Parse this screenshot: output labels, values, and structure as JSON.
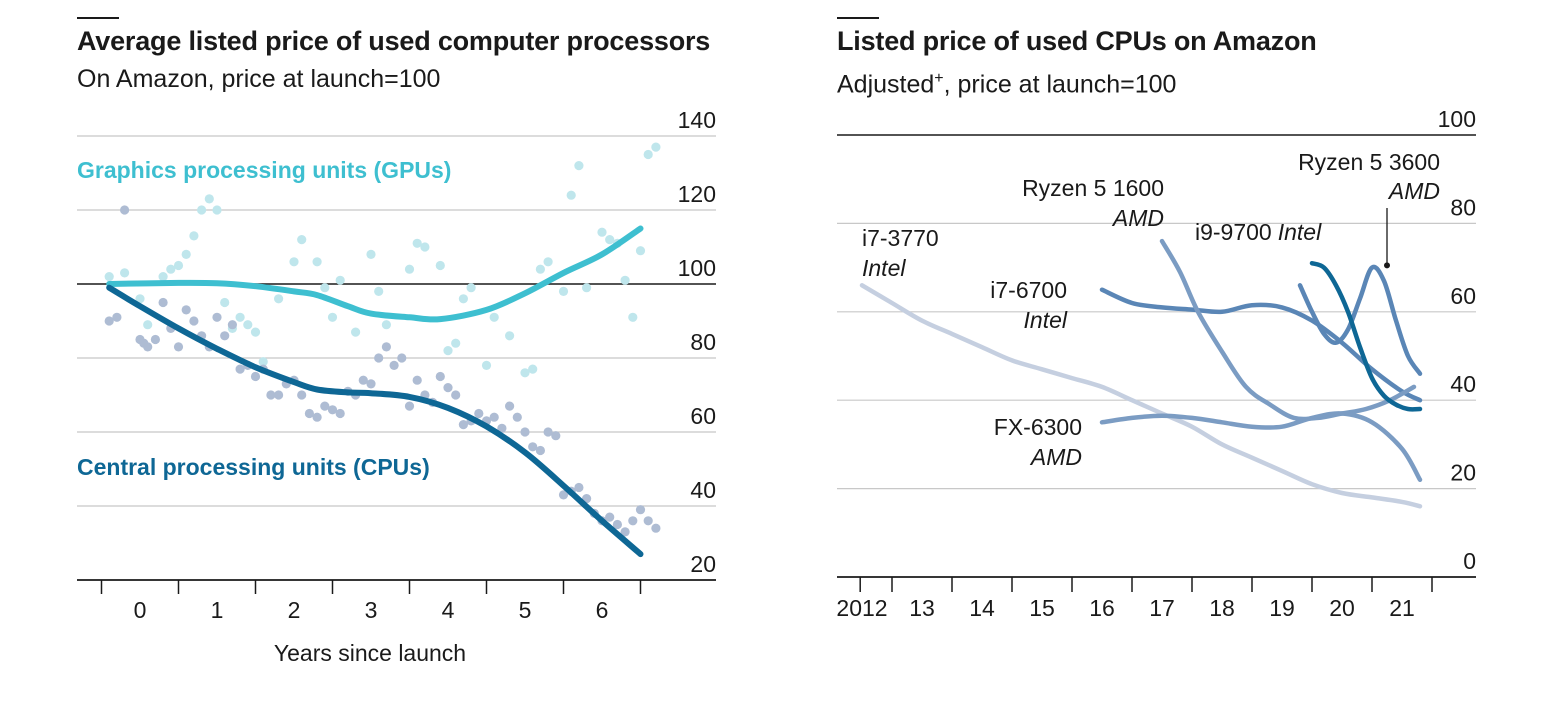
{
  "chart_data": [
    {
      "type": "line",
      "title": "Average listed price of used computer processors",
      "subtitle": "On Amazon, price at launch=100",
      "xlabel": "Years since launch",
      "xticks": [
        "0",
        "1",
        "2",
        "3",
        "4",
        "5",
        "6"
      ],
      "yticks": [
        "20",
        "40",
        "60",
        "80",
        "100",
        "120",
        "140"
      ],
      "xlim": [
        -0.5,
        6.5
      ],
      "ylim": [
        20,
        140
      ],
      "baseline": 100,
      "grid": true,
      "colors": {
        "gpu": "#3ebfd0",
        "gpu_dots": "#bfe6ec",
        "cpu": "#0e6795",
        "cpu_dots": "#aebcd3",
        "grid": "#c8c8c8",
        "axis": "#1a1a1a"
      },
      "series": [
        {
          "name": "Graphics processing units (GPUs)",
          "key": "gpu",
          "x": [
            -0.4,
            0.5,
            1.0,
            1.5,
            2.0,
            2.3,
            2.7,
            3.0,
            3.5,
            3.9,
            4.5,
            5.0,
            5.5,
            6.0,
            6.5
          ],
          "y": [
            100,
            100.3,
            100.2,
            99.4,
            98,
            97,
            94,
            92,
            91,
            90.5,
            93,
            97.5,
            103,
            108,
            115
          ]
        },
        {
          "name": "Central processing units (CPUs)",
          "key": "cpu",
          "x": [
            -0.4,
            0,
            0.5,
            1.0,
            1.5,
            2.0,
            2.3,
            2.7,
            3.0,
            3.5,
            4.0,
            4.5,
            5.0,
            5.5,
            6.0,
            6.5
          ],
          "y": [
            99,
            94,
            88,
            82.5,
            77.5,
            73.5,
            71.5,
            70.7,
            70.5,
            69.5,
            66.5,
            61.5,
            54.5,
            45.5,
            36,
            27
          ]
        }
      ],
      "scatter": [
        {
          "key": "gpu",
          "points": [
            [
              -0.4,
              102
            ],
            [
              -0.2,
              103
            ],
            [
              0,
              96
            ],
            [
              0.1,
              89
            ],
            [
              0.3,
              102
            ],
            [
              0.4,
              104
            ],
            [
              0.5,
              105
            ],
            [
              0.6,
              108
            ],
            [
              0.7,
              113
            ],
            [
              0.8,
              120
            ],
            [
              0.9,
              123
            ],
            [
              1.0,
              120
            ],
            [
              1.1,
              95
            ],
            [
              1.2,
              88
            ],
            [
              1.3,
              91
            ],
            [
              1.4,
              89
            ],
            [
              1.5,
              87
            ],
            [
              1.6,
              79
            ],
            [
              1.8,
              96
            ],
            [
              2.0,
              106
            ],
            [
              2.1,
              112
            ],
            [
              2.3,
              106
            ],
            [
              2.4,
              99
            ],
            [
              2.5,
              91
            ],
            [
              2.6,
              101
            ],
            [
              2.8,
              87
            ],
            [
              3.0,
              108
            ],
            [
              3.1,
              98
            ],
            [
              3.2,
              89
            ],
            [
              3.5,
              104
            ],
            [
              3.6,
              111
            ],
            [
              3.7,
              110
            ],
            [
              3.9,
              105
            ],
            [
              4.0,
              82
            ],
            [
              4.1,
              84
            ],
            [
              4.2,
              96
            ],
            [
              4.3,
              99
            ],
            [
              4.5,
              78
            ],
            [
              4.6,
              91
            ],
            [
              4.8,
              86
            ],
            [
              5.0,
              76
            ],
            [
              5.1,
              77
            ],
            [
              5.2,
              104
            ],
            [
              5.3,
              106
            ],
            [
              5.5,
              98
            ],
            [
              5.6,
              124
            ],
            [
              5.7,
              132
            ],
            [
              5.8,
              99
            ],
            [
              6.0,
              114
            ],
            [
              6.1,
              112
            ],
            [
              6.2,
              111
            ],
            [
              6.3,
              101
            ],
            [
              6.4,
              91
            ],
            [
              6.5,
              109
            ],
            [
              6.6,
              135
            ],
            [
              6.7,
              137
            ]
          ]
        },
        {
          "key": "cpu",
          "points": [
            [
              -0.4,
              90
            ],
            [
              -0.3,
              91
            ],
            [
              -0.2,
              120
            ],
            [
              0,
              85
            ],
            [
              0.05,
              84
            ],
            [
              0.1,
              83
            ],
            [
              0.2,
              85
            ],
            [
              0.3,
              95
            ],
            [
              0.4,
              88
            ],
            [
              0.5,
              83
            ],
            [
              0.6,
              93
            ],
            [
              0.7,
              90
            ],
            [
              0.8,
              86
            ],
            [
              0.9,
              83
            ],
            [
              1.0,
              91
            ],
            [
              1.1,
              86
            ],
            [
              1.2,
              89
            ],
            [
              1.3,
              77
            ],
            [
              1.4,
              78
            ],
            [
              1.5,
              75
            ],
            [
              1.6,
              77
            ],
            [
              1.7,
              70
            ],
            [
              1.8,
              70
            ],
            [
              1.9,
              73
            ],
            [
              2.0,
              74
            ],
            [
              2.1,
              70
            ],
            [
              2.2,
              65
            ],
            [
              2.3,
              64
            ],
            [
              2.4,
              67
            ],
            [
              2.5,
              66
            ],
            [
              2.6,
              65
            ],
            [
              2.7,
              71
            ],
            [
              2.8,
              70
            ],
            [
              2.9,
              74
            ],
            [
              3.0,
              73
            ],
            [
              3.1,
              80
            ],
            [
              3.2,
              83
            ],
            [
              3.3,
              78
            ],
            [
              3.4,
              80
            ],
            [
              3.5,
              67
            ],
            [
              3.6,
              74
            ],
            [
              3.7,
              70
            ],
            [
              3.8,
              68
            ],
            [
              3.9,
              75
            ],
            [
              4.0,
              72
            ],
            [
              4.1,
              70
            ],
            [
              4.2,
              62
            ],
            [
              4.3,
              63
            ],
            [
              4.4,
              65
            ],
            [
              4.5,
              63
            ],
            [
              4.6,
              64
            ],
            [
              4.7,
              61
            ],
            [
              4.8,
              67
            ],
            [
              4.9,
              64
            ],
            [
              5.0,
              60
            ],
            [
              5.1,
              56
            ],
            [
              5.2,
              55
            ],
            [
              5.3,
              60
            ],
            [
              5.4,
              59
            ],
            [
              5.5,
              43
            ],
            [
              5.6,
              44
            ],
            [
              5.7,
              45
            ],
            [
              5.8,
              42
            ],
            [
              5.9,
              38
            ],
            [
              6.0,
              36
            ],
            [
              6.1,
              37
            ],
            [
              6.2,
              35
            ],
            [
              6.3,
              33
            ],
            [
              6.4,
              36
            ],
            [
              6.5,
              39
            ],
            [
              6.6,
              36
            ],
            [
              6.7,
              34
            ]
          ]
        }
      ],
      "labels": [
        {
          "text": "Graphics processing units (GPUs)",
          "series": "gpu"
        },
        {
          "text": "Central processing units (CPUs)",
          "series": "cpu"
        }
      ]
    },
    {
      "type": "line",
      "title": "Listed price of used CPUs on Amazon",
      "subtitle_main": "Adjusted",
      "subtitle_mark": "+",
      "subtitle_rest": ", price at launch=100",
      "xticks": [
        "2012",
        "13",
        "14",
        "15",
        "16",
        "17",
        "18",
        "19",
        "20",
        "21"
      ],
      "xtick_values": [
        2012,
        2013,
        2014,
        2015,
        2016,
        2017,
        2018,
        2019,
        2020,
        2021
      ],
      "yticks": [
        "0",
        "20",
        "40",
        "60",
        "80",
        "100"
      ],
      "xlim": [
        2011.6,
        2022.0
      ],
      "ylim": [
        0,
        100
      ],
      "grid": true,
      "colors": {
        "light": "#c5cfe0",
        "mid": "#7b9cc3",
        "dark": "#5a86b6",
        "darkest": "#0e6795",
        "grid": "#c8c8c8",
        "axis": "#1a1a1a"
      },
      "series": [
        {
          "name": "i7-3770",
          "maker": "Intel",
          "color": "light",
          "x": [
            2012.0,
            2012.5,
            2013.0,
            2013.5,
            2014.0,
            2014.5,
            2015.0,
            2015.5,
            2016.0,
            2016.5,
            2017.0,
            2017.5,
            2018.0,
            2018.5,
            2019.0,
            2019.5,
            2020.0,
            2020.5,
            2021.0,
            2021.3
          ],
          "y": [
            66,
            62,
            58,
            55,
            52,
            49,
            47,
            45,
            43,
            40,
            37,
            34,
            30,
            27,
            24,
            21,
            19,
            18,
            17,
            16
          ]
        },
        {
          "name": "i7-6700",
          "maker": "Intel",
          "color": "dark",
          "x": [
            2016.0,
            2016.5,
            2017.0,
            2017.5,
            2018.0,
            2018.5,
            2019.0,
            2019.5,
            2020.0,
            2020.5,
            2021.0,
            2021.3
          ],
          "y": [
            65,
            62,
            61,
            60.5,
            60,
            61.5,
            61,
            58,
            53,
            47,
            42,
            40
          ]
        },
        {
          "name": "Ryzen 5 1600",
          "maker": "AMD",
          "color": "mid",
          "x": [
            2017.0,
            2017.3,
            2017.6,
            2018.0,
            2018.4,
            2018.8,
            2019.2,
            2019.6,
            2020.0,
            2020.4,
            2020.8,
            2021.2
          ],
          "y": [
            76,
            69,
            60,
            51,
            43,
            39,
            36,
            36,
            37,
            38,
            40,
            43
          ]
        },
        {
          "name": "FX-6300",
          "maker": "AMD",
          "color": "mid",
          "x": [
            2016.0,
            2016.5,
            2017.0,
            2017.5,
            2018.0,
            2018.5,
            2019.0,
            2019.5,
            2020.0,
            2020.5,
            2021.0,
            2021.3
          ],
          "y": [
            35,
            36,
            36.5,
            36,
            35,
            34,
            34,
            36,
            37,
            35,
            29,
            22
          ]
        },
        {
          "name": "i9-9700",
          "maker": "Intel",
          "color": "dark",
          "x": [
            2019.3,
            2019.5,
            2019.7,
            2019.9,
            2020.1,
            2020.3,
            2020.5,
            2020.7,
            2020.9,
            2021.1,
            2021.3
          ],
          "y": [
            66,
            60,
            55,
            53,
            56,
            63,
            70,
            67,
            58,
            50,
            46
          ]
        },
        {
          "name": "Ryzen 5 3600",
          "maker": "AMD",
          "color": "darkest",
          "x": [
            2019.5,
            2019.7,
            2019.9,
            2020.1,
            2020.3,
            2020.5,
            2020.7,
            2020.9,
            2021.1,
            2021.3
          ],
          "y": [
            71,
            70,
            66,
            60,
            52,
            45,
            41,
            39,
            38,
            38
          ]
        }
      ],
      "labels": [
        {
          "text": "i7-3770",
          "sub": "Intel"
        },
        {
          "text": "i7-6700",
          "sub": "Intel"
        },
        {
          "text": "Ryzen 5 1600",
          "sub": "AMD"
        },
        {
          "text": "FX-6300",
          "sub": "AMD"
        },
        {
          "text": "i9-9700",
          "sub": "Intel"
        },
        {
          "text": "Ryzen 5 3600",
          "sub": "AMD"
        }
      ]
    }
  ]
}
